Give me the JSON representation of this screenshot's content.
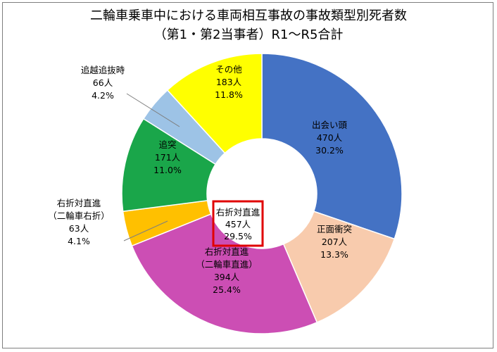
{
  "chart_data": {
    "type": "pie",
    "title": [
      "二輪車乗車中における車両相互事故の事故類型別死者数",
      "（第1・第2当事者）R1～R5合計"
    ],
    "center_label": {
      "lines": [
        "右折対直進",
        "457人",
        "29.5%"
      ],
      "box_color": "#e00000"
    },
    "slices": [
      {
        "name": "出会い頭",
        "value": 470,
        "lines": [
          "出会い頭",
          "470人",
          "30.2%"
        ],
        "color": "#4472c4",
        "text_color": "#000000"
      },
      {
        "name": "正面衝突",
        "value": 207,
        "lines": [
          "正面衝突",
          "207人",
          "13.3%"
        ],
        "color": "#f8cbad",
        "text_color": "#000000"
      },
      {
        "name": "右折対直進（二輪車直進）",
        "value": 394,
        "lines": [
          "右折対直進",
          "（二輪車直進）",
          "394人",
          "25.4%"
        ],
        "color": "#cc4eb4",
        "text_color": "#000000"
      },
      {
        "name": "右折対直進（二輪車右折）",
        "value": 63,
        "lines": [
          "右折対直進",
          "（二輪車右折）",
          "63人",
          "4.1%"
        ],
        "color": "#ffc000",
        "text_color": "#000000"
      },
      {
        "name": "追突",
        "value": 171,
        "lines": [
          "追突",
          "171人",
          "11.0%"
        ],
        "color": "#1aa64a",
        "text_color": "#000000"
      },
      {
        "name": "追越追抜時",
        "value": 66,
        "lines": [
          "追越追抜時",
          "66人",
          "4.2%"
        ],
        "color": "#9dc3e6",
        "text_color": "#000000"
      },
      {
        "name": "その他",
        "value": 183,
        "lines": [
          "その他",
          "183人",
          "11.8%"
        ],
        "color": "#ffff00",
        "text_color": "#000000"
      }
    ]
  }
}
